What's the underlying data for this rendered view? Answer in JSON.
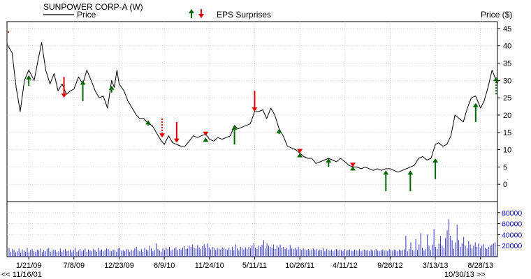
{
  "header": {
    "title": "SUNPOWER CORP-A (W)",
    "legend_price": "Price",
    "legend_eps": "EPS Surprises",
    "axis_price_label": "Price ($)",
    "range_start": "<< 11/16/01",
    "range_end": "10/30/13 >>"
  },
  "colors": {
    "price_line": "#000000",
    "up_arrow": "#006600",
    "down_arrow": "#e00000",
    "volume_bar": "#3333cc",
    "grid": "#b8b8b8",
    "axis_text_price": "#000000",
    "axis_text_volume": "#0000cc"
  },
  "chart_data": {
    "type": "line",
    "title": "SUNPOWER CORP-A (W)",
    "ylabel": "Price ($)",
    "ylim": [
      -5,
      47
    ],
    "y_ticks": [
      0,
      5,
      10,
      15,
      20,
      25,
      30,
      35,
      40,
      45
    ],
    "volume_ylim": [
      0,
      100000
    ],
    "volume_ticks": [
      20000,
      40000,
      60000,
      80000
    ],
    "volume_tick_labels": [
      "20000",
      "40000",
      "60000",
      "80000"
    ],
    "x_start": "2008-11-01",
    "x_end": "2013-10-30",
    "x_tick_dates": [
      "2009-01-21",
      "2009-07-08",
      "2009-12-23",
      "2010-06-09",
      "2010-11-24",
      "2011-05-11",
      "2011-10-26",
      "2012-04-11",
      "2012-09-26",
      "2013-03-13",
      "2013-08-28"
    ],
    "x_tick_labels": [
      "1/21/09",
      "7/8/09",
      "12/23/09",
      "6/9/10",
      "11/24/10",
      "5/11/11",
      "10/26/11",
      "4/11/12",
      "9/26/12",
      "3/13/13",
      "8/28/13"
    ],
    "price_series": {
      "name": "Price",
      "points": [
        [
          "2008-11-01",
          40.5
        ],
        [
          "2008-11-20",
          38
        ],
        [
          "2008-12-05",
          28
        ],
        [
          "2008-12-20",
          21
        ],
        [
          "2009-01-05",
          30
        ],
        [
          "2009-01-21",
          33
        ],
        [
          "2009-02-10",
          30
        ],
        [
          "2009-02-25",
          36
        ],
        [
          "2009-03-10",
          41
        ],
        [
          "2009-03-25",
          33
        ],
        [
          "2009-04-10",
          29
        ],
        [
          "2009-04-25",
          32
        ],
        [
          "2009-05-10",
          27
        ],
        [
          "2009-05-25",
          29
        ],
        [
          "2009-06-10",
          26
        ],
        [
          "2009-06-25",
          27
        ],
        [
          "2009-07-08",
          27.5
        ],
        [
          "2009-07-25",
          31
        ],
        [
          "2009-08-10",
          29
        ],
        [
          "2009-08-25",
          33
        ],
        [
          "2009-09-10",
          30
        ],
        [
          "2009-09-25",
          27
        ],
        [
          "2009-10-10",
          25
        ],
        [
          "2009-10-25",
          25.5
        ],
        [
          "2009-11-10",
          22
        ],
        [
          "2009-11-25",
          30
        ],
        [
          "2009-12-05",
          28
        ],
        [
          "2009-12-15",
          33
        ],
        [
          "2009-12-23",
          29
        ],
        [
          "2010-01-10",
          27
        ],
        [
          "2010-01-25",
          24
        ],
        [
          "2010-02-10",
          22
        ],
        [
          "2010-02-25",
          20
        ],
        [
          "2010-03-10",
          19
        ],
        [
          "2010-03-25",
          19
        ],
        [
          "2010-04-10",
          17.5
        ],
        [
          "2010-04-25",
          17
        ],
        [
          "2010-05-10",
          15
        ],
        [
          "2010-05-25",
          13
        ],
        [
          "2010-06-09",
          11.5
        ],
        [
          "2010-06-25",
          14
        ],
        [
          "2010-07-10",
          12
        ],
        [
          "2010-07-25",
          11.5
        ],
        [
          "2010-08-10",
          11
        ],
        [
          "2010-08-25",
          11
        ],
        [
          "2010-09-10",
          12.5
        ],
        [
          "2010-09-25",
          14
        ],
        [
          "2010-10-10",
          13.5
        ],
        [
          "2010-10-25",
          14
        ],
        [
          "2010-11-10",
          14.5
        ],
        [
          "2010-11-24",
          13
        ],
        [
          "2010-12-10",
          12.5
        ],
        [
          "2010-12-25",
          13.5
        ],
        [
          "2011-01-10",
          13
        ],
        [
          "2011-01-25",
          13.5
        ],
        [
          "2011-02-10",
          14
        ],
        [
          "2011-02-25",
          17
        ],
        [
          "2011-03-10",
          16
        ],
        [
          "2011-03-25",
          16.5
        ],
        [
          "2011-04-10",
          17
        ],
        [
          "2011-04-25",
          17.5
        ],
        [
          "2011-05-11",
          21
        ],
        [
          "2011-05-25",
          21
        ],
        [
          "2011-06-10",
          21.5
        ],
        [
          "2011-06-25",
          19
        ],
        [
          "2011-07-10",
          22
        ],
        [
          "2011-07-25",
          20
        ],
        [
          "2011-08-10",
          16
        ],
        [
          "2011-08-25",
          14
        ],
        [
          "2011-09-10",
          11
        ],
        [
          "2011-09-25",
          10.5
        ],
        [
          "2011-10-10",
          10
        ],
        [
          "2011-10-26",
          9
        ],
        [
          "2011-11-10",
          8
        ],
        [
          "2011-11-25",
          7.5
        ],
        [
          "2011-12-10",
          7.5
        ],
        [
          "2011-12-25",
          6
        ],
        [
          "2012-01-10",
          6.5
        ],
        [
          "2012-01-25",
          7
        ],
        [
          "2012-02-10",
          7.5
        ],
        [
          "2012-02-25",
          7
        ],
        [
          "2012-03-10",
          6.5
        ],
        [
          "2012-03-25",
          7.5
        ],
        [
          "2012-04-11",
          6.5
        ],
        [
          "2012-04-25",
          5.5
        ],
        [
          "2012-05-10",
          5
        ],
        [
          "2012-05-25",
          5
        ],
        [
          "2012-06-10",
          4.5
        ],
        [
          "2012-06-25",
          5
        ],
        [
          "2012-07-10",
          4.5
        ],
        [
          "2012-07-25",
          4
        ],
        [
          "2012-08-10",
          4.5
        ],
        [
          "2012-08-25",
          4
        ],
        [
          "2012-09-10",
          4.5
        ],
        [
          "2012-09-26",
          4.5
        ],
        [
          "2012-10-10",
          4
        ],
        [
          "2012-10-25",
          3.5
        ],
        [
          "2012-11-10",
          4
        ],
        [
          "2012-11-25",
          4.5
        ],
        [
          "2012-12-10",
          5
        ],
        [
          "2012-12-25",
          5.5
        ],
        [
          "2013-01-10",
          7.5
        ],
        [
          "2013-01-25",
          8
        ],
        [
          "2013-02-10",
          7
        ],
        [
          "2013-02-25",
          7.5
        ],
        [
          "2013-03-13",
          11.5
        ],
        [
          "2013-03-25",
          12
        ],
        [
          "2013-04-10",
          11
        ],
        [
          "2013-04-25",
          11.5
        ],
        [
          "2013-05-10",
          14
        ],
        [
          "2013-05-25",
          20
        ],
        [
          "2013-06-10",
          19
        ],
        [
          "2013-06-25",
          18
        ],
        [
          "2013-07-10",
          22
        ],
        [
          "2013-07-25",
          25
        ],
        [
          "2013-08-10",
          25.5
        ],
        [
          "2013-08-28",
          22
        ],
        [
          "2013-09-10",
          24
        ],
        [
          "2013-09-25",
          28
        ],
        [
          "2013-10-10",
          33
        ],
        [
          "2013-10-25",
          30
        ],
        [
          "2013-10-30",
          29
        ]
      ]
    },
    "eps_surprises": [
      {
        "date": "2009-01-21",
        "type": "up",
        "from": 28.5,
        "to": 31.5
      },
      {
        "date": "2009-06-01",
        "type": "down",
        "from": 31,
        "to": 25
      },
      {
        "date": "2009-08-10",
        "type": "up",
        "from": 24,
        "to": 30
      },
      {
        "date": "2009-11-25",
        "type": "up",
        "from": 26.5,
        "to": 28.5
      },
      {
        "date": "2010-04-10",
        "type": "up",
        "from": 17,
        "to": 18.5
      },
      {
        "date": "2010-06-01",
        "type": "down",
        "dashed": true,
        "from": 19,
        "to": 13.5
      },
      {
        "date": "2010-07-25",
        "type": "down",
        "from": 18,
        "to": 12
      },
      {
        "date": "2010-11-10",
        "type": "down",
        "from": 15,
        "to": 14
      },
      {
        "date": "2010-11-10",
        "type": "up",
        "from": 12.5,
        "to": 13.5
      },
      {
        "date": "2011-02-25",
        "type": "up",
        "from": 11.5,
        "to": 17
      },
      {
        "date": "2011-05-11",
        "type": "down",
        "from": 27,
        "to": 21
      },
      {
        "date": "2011-08-10",
        "type": "up",
        "from": 14.5,
        "to": 16
      },
      {
        "date": "2011-10-26",
        "type": "down",
        "from": 10,
        "to": 9
      },
      {
        "date": "2011-10-26",
        "type": "up",
        "from": 8,
        "to": 9
      },
      {
        "date": "2012-02-10",
        "type": "up",
        "from": 5,
        "to": 7.5
      },
      {
        "date": "2012-05-10",
        "type": "down",
        "from": 6,
        "to": 5
      },
      {
        "date": "2012-05-10",
        "type": "up",
        "from": 4.5,
        "to": 5.2
      },
      {
        "date": "2012-09-10",
        "type": "up",
        "from": -2,
        "to": 4
      },
      {
        "date": "2012-12-10",
        "type": "up",
        "from": -2,
        "to": 4
      },
      {
        "date": "2013-03-13",
        "type": "up",
        "from": 1.5,
        "to": 7.5
      },
      {
        "date": "2013-08-10",
        "type": "up",
        "from": 18,
        "to": 23.5
      },
      {
        "date": "2013-10-25",
        "type": "up",
        "dashed": true,
        "from": 26,
        "to": 31
      }
    ],
    "volume_series": {
      "values": [
        16000,
        9000,
        14000,
        12000,
        8000,
        10000,
        15000,
        7000,
        13000,
        11000,
        9000,
        16000,
        8000,
        12000,
        14000,
        10000,
        9000,
        13000,
        11000,
        15000,
        8000,
        12000,
        10000,
        14000,
        16000,
        9000,
        11000,
        13000,
        12000,
        8000,
        10000,
        15000,
        9000,
        12000,
        14000,
        10000,
        11000,
        13000,
        8000,
        12000,
        16000,
        9000,
        11000,
        14000,
        10000,
        12000,
        15000,
        9000,
        13000,
        11000,
        10000,
        14000,
        12000,
        9000,
        16000,
        11000,
        13000,
        10000,
        12000,
        15000,
        14000,
        11000,
        10000,
        13000,
        12000,
        9000,
        15000,
        16000,
        11000,
        12000,
        10000,
        14000,
        13000,
        9000,
        12000,
        11000,
        15000,
        18000,
        12000,
        10000,
        14000,
        9000,
        16000,
        13000,
        11000,
        20000,
        15000,
        10000,
        12000,
        24000,
        14000,
        11000,
        9000,
        15000,
        12000,
        16000,
        14000,
        18000,
        11000,
        13000,
        15000,
        17000,
        12000,
        14000,
        13000,
        16000,
        19000,
        14000,
        15000,
        20000,
        18000,
        22000,
        16000,
        15000,
        21000,
        17000,
        14000,
        19000,
        23000,
        16000,
        24000,
        17000,
        13000,
        18000,
        15000,
        12000,
        16000,
        14000,
        13000,
        17000,
        15000,
        14000,
        12000,
        16000,
        13000,
        18000,
        12000,
        22000,
        15000,
        11000,
        18000,
        16000,
        13000,
        17000,
        14000,
        18000,
        15000,
        20000,
        25000,
        16000,
        14000,
        20000,
        18000,
        22000,
        30000,
        15000,
        24000,
        20000,
        18000,
        16000,
        22000,
        14000,
        20000,
        17000,
        22000,
        15000,
        18000,
        14000,
        16000,
        13000,
        21000,
        15000,
        14000,
        16000,
        13000,
        18000,
        14000,
        12000,
        15000,
        13000,
        12000,
        14000,
        11000,
        13000,
        15000,
        12000,
        14000,
        11000,
        13000,
        12000,
        15000,
        10000,
        14000,
        12000,
        11000,
        13000,
        10000,
        12000,
        14000,
        11000,
        13000,
        12000,
        10000,
        14000,
        11000,
        12000,
        13000,
        11000,
        10000,
        13000,
        12000,
        11000,
        14000,
        10000,
        12000,
        13000,
        11000,
        12000,
        10000,
        13000,
        11000,
        12000,
        14000,
        11000,
        10000,
        12000,
        13000,
        11000,
        12000,
        10000,
        14000,
        12000,
        11000,
        13000,
        12000,
        10000,
        13000,
        11000,
        12000,
        13000,
        38000,
        10000,
        14000,
        26000,
        12000,
        11000,
        32000,
        12000,
        22000,
        43000,
        16000,
        11000,
        14000,
        40000,
        20000,
        12000,
        22000,
        50000,
        18000,
        14000,
        24000,
        38000,
        20000,
        16000,
        34000,
        48000,
        68000,
        38000,
        30000,
        14000,
        26000,
        58000,
        30000,
        18000,
        24000,
        36000,
        20000,
        16000,
        28000,
        22000,
        15000,
        20000,
        26000,
        18000,
        24000,
        15000,
        20000,
        23000,
        16000,
        14000,
        18000,
        20000,
        22000,
        24000,
        26000
      ]
    }
  }
}
